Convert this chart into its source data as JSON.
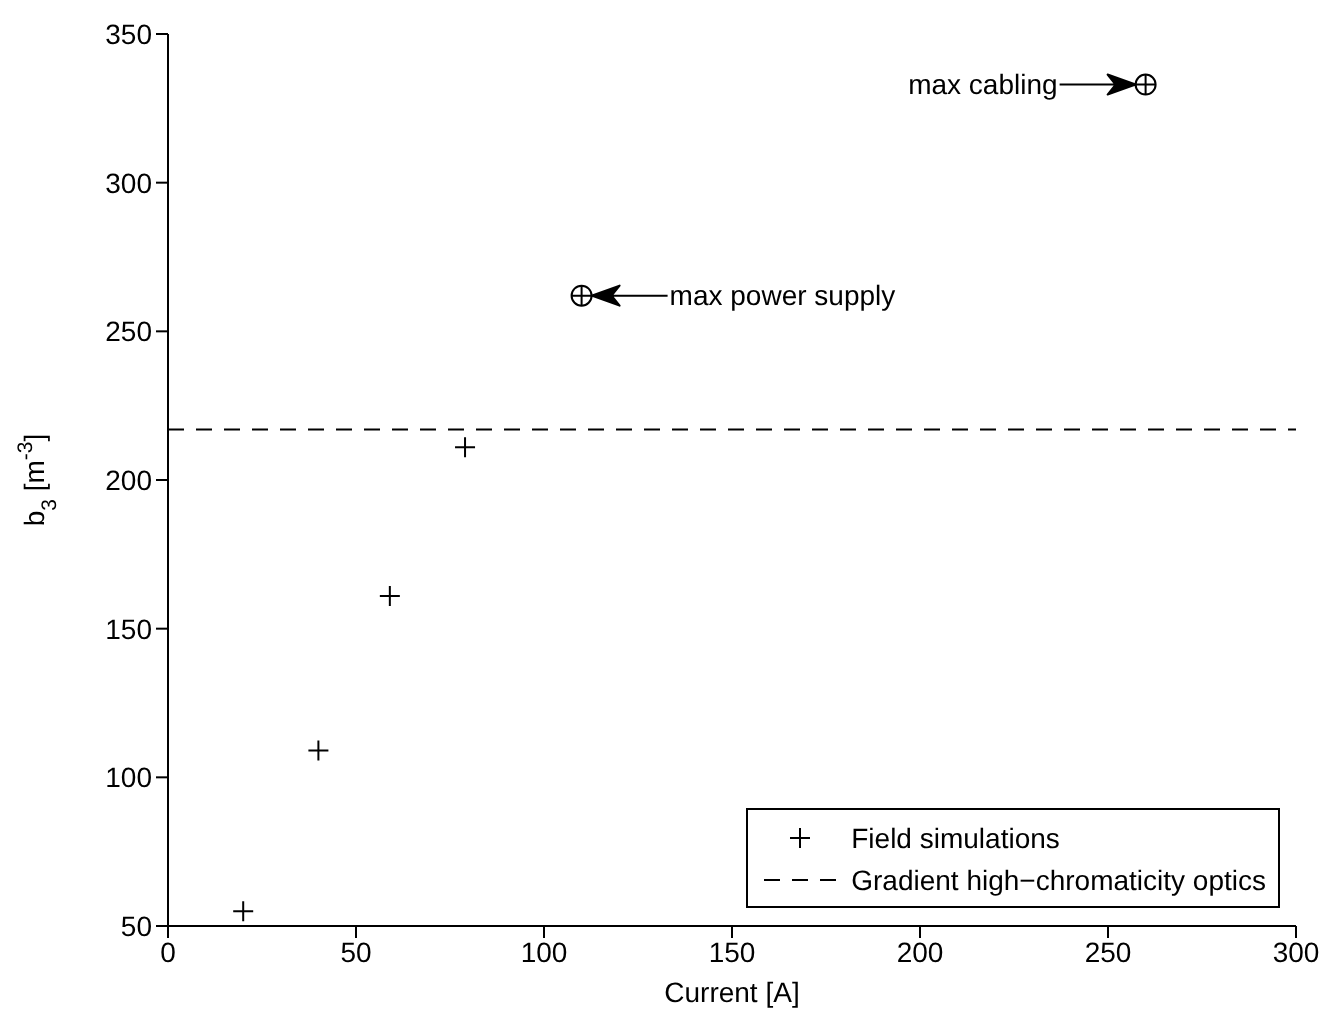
{
  "chart_data": {
    "type": "scatter",
    "xlabel": "Current [A]",
    "ylabel": "b$_{3}$ [m$^{-3}$]",
    "xlim": [
      0,
      300
    ],
    "xticks": [
      0,
      50,
      100,
      150,
      200,
      250,
      300
    ],
    "ylim": [
      50,
      350
    ],
    "yticks": [
      50,
      100,
      150,
      200,
      250,
      300,
      350
    ],
    "series": [
      {
        "name": "Field simulations",
        "color": "#000000",
        "marker": "cross",
        "x": [
          20,
          40,
          59,
          79
        ],
        "values": [
          55,
          109,
          161,
          211
        ]
      },
      {
        "color": "#000000",
        "marker": "circle",
        "x": [
          110,
          260
        ],
        "values": [
          262,
          333
        ]
      }
    ],
    "ref_lines": [
      {
        "axis": "y",
        "value": 217,
        "label": "Gradient high−chromaticity optics",
        "color": "#000000",
        "line_style": "dashed"
      }
    ],
    "annotations": [
      "max power supply",
      "max cabling"
    ],
    "legend": "bottom right",
    "grid": false
  }
}
